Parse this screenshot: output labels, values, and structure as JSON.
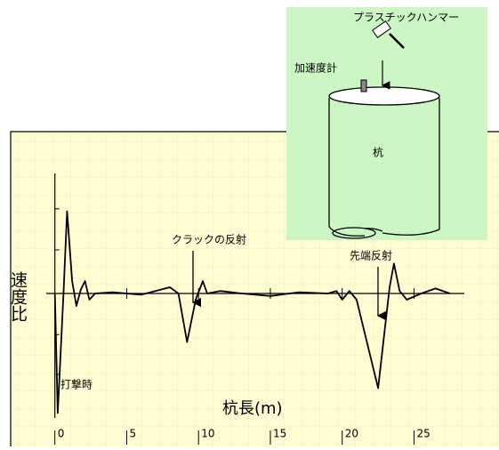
{
  "chart_data": {
    "type": "line",
    "xlabel": "杭長(m)",
    "ylabel": "速度比",
    "x": [
      0,
      0.2,
      0.6,
      0.85,
      1.2,
      1.5,
      1.8,
      2.1,
      2.4,
      2.8,
      4,
      6,
      7,
      8,
      8.6,
      9.2,
      9.8,
      10.3,
      10.6,
      11.5,
      13,
      15,
      17,
      19,
      19.6,
      20,
      20.5,
      21,
      22.5,
      23.3,
      23.6,
      24,
      24.5,
      25.5,
      26.5,
      27.5
    ],
    "values": [
      0,
      -0.96,
      0,
      0.66,
      0.1,
      -0.1,
      0.03,
      0.1,
      -0.05,
      0,
      0.01,
      -0.01,
      0.02,
      0.05,
      0,
      -0.39,
      -0.05,
      0.1,
      0,
      0.02,
      0,
      -0.02,
      0.01,
      0,
      0.02,
      -0.05,
      0.02,
      -0.05,
      -0.76,
      0.05,
      0.24,
      0.02,
      -0.05,
      0,
      0.04,
      0
    ],
    "color": "#000000",
    "xlim": [
      -0.6,
      28.5
    ],
    "ylim": [
      -1,
      1
    ],
    "xticks": [
      0,
      5,
      10,
      15,
      20,
      25
    ],
    "annotations": {
      "impact": "打撃時",
      "crack": "クラックの反射",
      "tip": "先端反射"
    }
  },
  "diagram": {
    "hammer": "プラスチックハンマー",
    "sensor": "加速度計",
    "pile": "杭"
  }
}
